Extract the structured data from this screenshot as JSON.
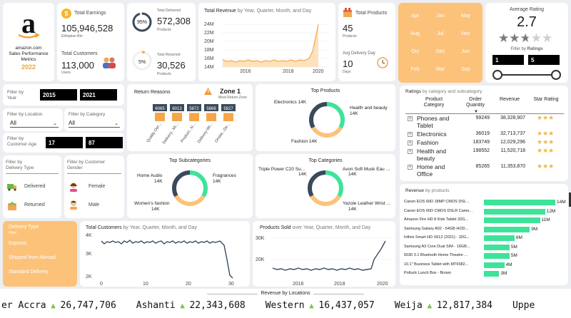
{
  "brand": {
    "logo_letter": "a",
    "line1": "amazon.com",
    "line2": "Sales Performance",
    "line3": "Metrics",
    "year": "2022"
  },
  "earnings": {
    "label": "Total Earnings",
    "value": "105,946,528",
    "unit": "Ethiopian Birr"
  },
  "customers": {
    "label": "Total Customers",
    "value": "113,000",
    "unit": "Users"
  },
  "delivered": {
    "label": "Total Delivered",
    "value": "572,308",
    "unit": "Products",
    "pct": "95%",
    "fraction": 0.95
  },
  "returned": {
    "label": "Total Returned",
    "value": "30,526",
    "unit": "Products",
    "pct": "5%",
    "fraction": 0.05
  },
  "revenue_chart": {
    "title": "Total Revenue",
    "subtitle": "by Year, Quarter, Month, and Day",
    "y_ticks": [
      "24M",
      "22M",
      "20M",
      "18M",
      "16M",
      "14M"
    ],
    "x_ticks": [
      "2016",
      "2018",
      "2020"
    ]
  },
  "products_card": {
    "label": "Total Products",
    "value": "45",
    "unit": "Products",
    "delivery_label": "Avg Delivery Day",
    "delivery_value": "10",
    "delivery_unit": "Days"
  },
  "months": [
    "Apr",
    "Jan",
    "May",
    "Aug",
    "Jul",
    "Nov",
    "Oct",
    "Dec",
    "Jun",
    "Feb",
    "Mar",
    "Sep"
  ],
  "rating": {
    "title": "Average Rating",
    "value": "2.7",
    "stars_filled": 2.7,
    "filter_label": "Filter by",
    "filter_bold": "Ratings",
    "min": "1",
    "max": "5"
  },
  "filters": {
    "year_label": "Filter by Year",
    "year_from": "2015",
    "year_to": "2021",
    "location_label": "Filter by Location",
    "location_value": "All",
    "category_label": "Filter by Category",
    "category_value": "All",
    "age_label": "Filter by Customer Age",
    "age_from": "17",
    "age_to": "87",
    "delivery_label": "Filter by Delivery Type",
    "delivered": "Delivered",
    "returned": "Returned",
    "gender_label": "Filter by Customer Gender",
    "female": "Female",
    "male": "Male"
  },
  "return_reasons": {
    "title": "Return Reasons",
    "zone_title": "Zone 1",
    "zone_sub": "Most Return Zone",
    "values": [
      "6065",
      "6013",
      "5872",
      "5868",
      "5827"
    ],
    "labels": [
      "Quality Def...",
      "Delivery...Mi...",
      "Product...N...",
      "Delivery-Wr...",
      "Onsite...De..."
    ]
  },
  "top_products": {
    "title": "Top Products",
    "l1": "Electronics 14K",
    "l2a": "Health and beauty",
    "l2b": "14K",
    "l3": "Fashion 14K"
  },
  "top_subcategories": {
    "title": "Top Subcategories",
    "l1a": "Home Audio",
    "l1b": "14K",
    "l2a": "Fragrances",
    "l2b": "14K",
    "l3a": "Women's fashion",
    "l3b": "14K"
  },
  "top_categories": {
    "title": "Top Categories",
    "l1a": "Triple Power C20 Su...",
    "l1b": "14K",
    "l2a": "Avon Soft Musk Eau ...",
    "l2b": "14K",
    "l3a": "Yazole Leather Wrist ...",
    "l3b": "14K"
  },
  "ratings_table": {
    "title": "Ratings",
    "subtitle": "by category and subcategory",
    "headers": [
      "Product Category",
      "Order Quantity",
      "Revenue",
      "Star Rating"
    ],
    "rows": [
      {
        "cat1": "Phones and",
        "cat2": "Tablet",
        "qty": "99249",
        "rev": "38,328,907",
        "stars": 3
      },
      {
        "cat1": "Electronics",
        "cat2": "",
        "qty": "36019",
        "rev": "32,713,737",
        "stars": 3
      },
      {
        "cat1": "Fashion",
        "cat2": "",
        "qty": "183749",
        "rev": "12,029,296",
        "stars": 3
      },
      {
        "cat1": "Health and",
        "cat2": "beauty",
        "qty": "198552",
        "rev": "11,520,718",
        "stars": 3
      },
      {
        "cat1": "Home and",
        "cat2": "Office",
        "qty": "85265",
        "rev": "11,353,870",
        "stars": 3
      }
    ]
  },
  "revenue_products": {
    "title": "Revenue",
    "subtitle": "by products",
    "items": [
      {
        "name": "Canon EOS 60D 18MP CMOS DSL...",
        "value": 14,
        "label": "14M"
      },
      {
        "name": "Canon EOS 60D CMOS DSLR Came...",
        "value": 12,
        "label": "12M"
      },
      {
        "name": "Amazon Fire HD 8 Kids Tablet 32G...",
        "value": 11,
        "label": "11M"
      },
      {
        "name": "Samsung Galaxy A02 - 64GB HOD...",
        "value": 9,
        "label": "9M"
      },
      {
        "name": "Infinix Smart HD X612 (2021) - 32G...",
        "value": 6,
        "label": "6M"
      },
      {
        "name": "Samsung A3 Core Dual SIM - 16GB...",
        "value": 5,
        "label": "5M"
      },
      {
        "name": "6030 3.1 Bluetooth Home Theatre ...",
        "value": 5,
        "label": "5M"
      },
      {
        "name": "10.1\" Business Tablet with MT6582...",
        "value": 4,
        "label": "4M"
      },
      {
        "name": "Potluck Lunch Box - Brown",
        "value": 3,
        "label": "3M"
      }
    ]
  },
  "delivery_type": {
    "title": "Delivery Type",
    "filter": "Filter",
    "items": [
      "Express",
      "Shipped from Abroad",
      "Standard Delivery"
    ]
  },
  "customers_chart": {
    "title": "Total Customers",
    "subtitle": "by Year, Quarter, Month, and Day",
    "y_ticks": [
      "4K",
      "3K",
      "2K"
    ],
    "x_ticks": [
      "0",
      "10",
      "20",
      "30"
    ]
  },
  "sold_chart": {
    "title": "Products Sold",
    "subtitle": "over Year, Quarter, Month, and Day",
    "y_ticks": [
      "30K",
      "20K"
    ],
    "x_ticks": [
      "2016",
      "2018",
      "2020"
    ]
  },
  "locations": {
    "title": "Revenue by Locations",
    "items": [
      {
        "name": "er Accra",
        "value": "26,747,706"
      },
      {
        "name": "Ashanti",
        "value": "22,343,608"
      },
      {
        "name": "Western",
        "value": "16,437,057"
      },
      {
        "name": "Weija",
        "value": "12,817,384"
      },
      {
        "name": "Uppe",
        "value": ""
      }
    ]
  },
  "colors": {
    "green": "#3ee39a",
    "orange": "#fdc27a",
    "navy": "#3a4a5c",
    "peach": "#f8b06a"
  }
}
